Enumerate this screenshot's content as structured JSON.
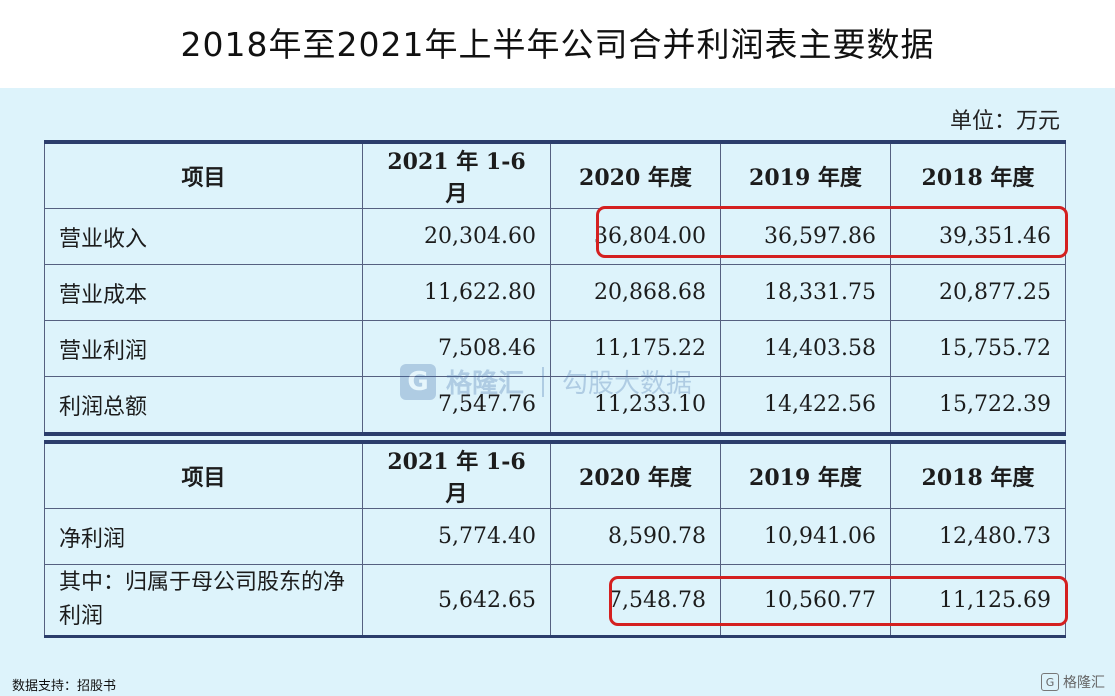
{
  "title": "2018年至2021年上半年公司合并利润表主要数据",
  "unit": "单位：万元",
  "headers": [
    "项目",
    "2021 年 1-6 月",
    "2020 年度",
    "2019 年度",
    "2018 年度"
  ],
  "table1": {
    "rows": [
      {
        "label": "营业收入",
        "values": [
          "20,304.60",
          "36,804.00",
          "36,597.86",
          "39,351.46"
        ]
      },
      {
        "label": "营业成本",
        "values": [
          "11,622.80",
          "20,868.68",
          "18,331.75",
          "20,877.25"
        ]
      },
      {
        "label": "营业利润",
        "values": [
          "7,508.46",
          "11,175.22",
          "14,403.58",
          "15,755.72"
        ]
      },
      {
        "label": "利润总额",
        "values": [
          "7,547.76",
          "11,233.10",
          "14,422.56",
          "15,722.39"
        ]
      }
    ]
  },
  "table2": {
    "rows": [
      {
        "label": "净利润",
        "values": [
          "5,774.40",
          "8,590.78",
          "10,941.06",
          "12,480.73"
        ]
      },
      {
        "label": "其中：归属于母公司股东的净利润",
        "values": [
          "5,642.65",
          "7,548.78",
          "10,560.77",
          "11,125.69"
        ]
      }
    ]
  },
  "watermark": {
    "icon": "G",
    "brand": "格隆汇",
    "slogan": "勾股大数据"
  },
  "source": "数据支持：招股书",
  "corner_logo": {
    "icon": "G",
    "brand": "格隆汇"
  },
  "colors": {
    "background": "#ddf3fb",
    "border": "#2b3d6b",
    "highlight": "#d42020"
  }
}
